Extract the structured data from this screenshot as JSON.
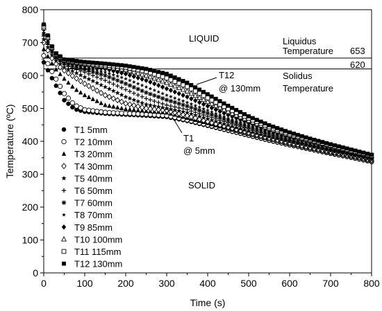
{
  "chart_data": {
    "type": "scatter",
    "xlabel": "Time (s)",
    "ylabel": "Temperature (ºC)",
    "xlim": [
      0,
      800
    ],
    "ylim": [
      0,
      800
    ],
    "x_ticks": [
      "0",
      "100",
      "200",
      "300",
      "400",
      "500",
      "600",
      "700",
      "800"
    ],
    "y_ticks": [
      "0",
      "100",
      "200",
      "300",
      "400",
      "500",
      "600",
      "700",
      "800"
    ],
    "grid": false,
    "legend_position": "left",
    "reference_lines": [
      {
        "name": "Liquidus Temperature",
        "line1": "Liquidus",
        "line2": "Temperature",
        "value": 653,
        "value_label": "653"
      },
      {
        "name": "Solidus Temperature",
        "line1": "Solidus",
        "line2": "Temperature",
        "value": 620,
        "value_label": "620"
      }
    ],
    "region_labels": {
      "liquid": "LIQUID",
      "solid": "SOLID"
    },
    "annotations": [
      {
        "line1": "T12",
        "line2": "@ 130mm",
        "target_x": 372,
        "target_y": 568
      },
      {
        "line1": "T1",
        "line2": "@ 5mm",
        "target_x": 318,
        "target_y": 468
      }
    ],
    "series": [
      {
        "name": "T1 5mm",
        "marker": "circle",
        "x": [
          0,
          25,
          50,
          75,
          100,
          150,
          200,
          250,
          300,
          350,
          400,
          450,
          500,
          550,
          600,
          650,
          700,
          750,
          800
        ],
        "y": [
          640,
          580,
          525,
          498,
          490,
          484,
          481,
          478,
          474,
          462,
          447,
          432,
          417,
          402,
          388,
          375,
          362,
          350,
          337
        ]
      },
      {
        "name": "T2 10mm",
        "marker": "circle-open",
        "x": [
          0,
          25,
          50,
          75,
          100,
          150,
          200,
          250,
          300,
          350,
          400,
          450,
          500,
          550,
          600,
          650,
          700,
          750,
          800
        ],
        "y": [
          660,
          600,
          545,
          510,
          496,
          488,
          485,
          482,
          478,
          465,
          450,
          434,
          419,
          404,
          390,
          377,
          364,
          352,
          339
        ]
      },
      {
        "name": "T3 20mm",
        "marker": "triangle",
        "x": [
          0,
          25,
          50,
          75,
          100,
          150,
          200,
          250,
          300,
          350,
          400,
          450,
          500,
          550,
          600,
          650,
          700,
          750,
          800
        ],
        "y": [
          680,
          625,
          590,
          560,
          540,
          510,
          498,
          492,
          487,
          471,
          455,
          438,
          422,
          407,
          392,
          379,
          366,
          354,
          341
        ]
      },
      {
        "name": "T4 30mm",
        "marker": "diamond-open",
        "x": [
          0,
          25,
          50,
          75,
          100,
          150,
          200,
          250,
          300,
          350,
          400,
          450,
          500,
          550,
          600,
          650,
          700,
          750,
          800
        ],
        "y": [
          700,
          640,
          615,
          595,
          575,
          540,
          515,
          500,
          494,
          478,
          460,
          443,
          426,
          410,
          395,
          381,
          368,
          356,
          343
        ]
      },
      {
        "name": "T5 40mm",
        "marker": "star5",
        "x": [
          0,
          25,
          50,
          75,
          100,
          150,
          200,
          250,
          300,
          350,
          400,
          450,
          500,
          550,
          600,
          650,
          700,
          750,
          800
        ],
        "y": [
          710,
          650,
          625,
          610,
          595,
          565,
          535,
          512,
          500,
          487,
          468,
          449,
          431,
          414,
          399,
          385,
          371,
          358,
          345
        ]
      },
      {
        "name": "T6 50mm",
        "marker": "plus",
        "x": [
          0,
          25,
          50,
          75,
          100,
          150,
          200,
          250,
          300,
          350,
          400,
          450,
          500,
          550,
          600,
          650,
          700,
          750,
          800
        ],
        "y": [
          720,
          655,
          632,
          620,
          610,
          585,
          557,
          530,
          510,
          496,
          476,
          456,
          437,
          419,
          403,
          388,
          374,
          361,
          347
        ]
      },
      {
        "name": "T7 60mm",
        "marker": "asterisk",
        "x": [
          0,
          25,
          50,
          75,
          100,
          150,
          200,
          250,
          300,
          350,
          400,
          450,
          500,
          550,
          600,
          650,
          700,
          750,
          800
        ],
        "y": [
          725,
          660,
          636,
          627,
          618,
          600,
          575,
          548,
          526,
          507,
          485,
          463,
          443,
          424,
          407,
          392,
          377,
          363,
          349
        ]
      },
      {
        "name": "T8 70mm",
        "marker": "star-small",
        "x": [
          0,
          25,
          50,
          75,
          100,
          150,
          200,
          250,
          300,
          350,
          400,
          450,
          500,
          550,
          600,
          650,
          700,
          750,
          800
        ],
        "y": [
          730,
          662,
          640,
          632,
          624,
          610,
          590,
          565,
          540,
          518,
          494,
          470,
          449,
          429,
          411,
          395,
          380,
          366,
          351
        ]
      },
      {
        "name": "T9 85mm",
        "marker": "diamond",
        "x": [
          0,
          25,
          50,
          75,
          100,
          150,
          200,
          250,
          300,
          350,
          400,
          450,
          500,
          550,
          600,
          650,
          700,
          750,
          800
        ],
        "y": [
          740,
          665,
          642,
          636,
          630,
          620,
          605,
          585,
          560,
          535,
          507,
          480,
          456,
          434,
          415,
          398,
          383,
          368,
          353
        ]
      },
      {
        "name": "T10 100mm",
        "marker": "triangle-open",
        "x": [
          0,
          25,
          50,
          75,
          100,
          150,
          200,
          250,
          300,
          350,
          400,
          450,
          500,
          550,
          600,
          650,
          700,
          750,
          800
        ],
        "y": [
          745,
          668,
          645,
          640,
          635,
          627,
          617,
          600,
          578,
          552,
          520,
          490,
          463,
          439,
          419,
          402,
          386,
          370,
          355
        ]
      },
      {
        "name": "T11 115mm",
        "marker": "square-open",
        "x": [
          0,
          25,
          50,
          75,
          100,
          150,
          200,
          250,
          300,
          350,
          400,
          450,
          500,
          550,
          600,
          650,
          700,
          750,
          800
        ],
        "y": [
          750,
          670,
          647,
          643,
          638,
          632,
          625,
          612,
          592,
          566,
          532,
          499,
          470,
          444,
          423,
          405,
          388,
          372,
          357
        ]
      },
      {
        "name": "T12 130mm",
        "marker": "square",
        "x": [
          0,
          25,
          50,
          75,
          100,
          150,
          200,
          250,
          300,
          350,
          400,
          450,
          500,
          550,
          600,
          650,
          700,
          750,
          800
        ],
        "y": [
          755,
          672,
          649,
          645,
          641,
          636,
          630,
          620,
          605,
          578,
          543,
          508,
          476,
          449,
          427,
          408,
          391,
          375,
          359
        ]
      }
    ]
  }
}
